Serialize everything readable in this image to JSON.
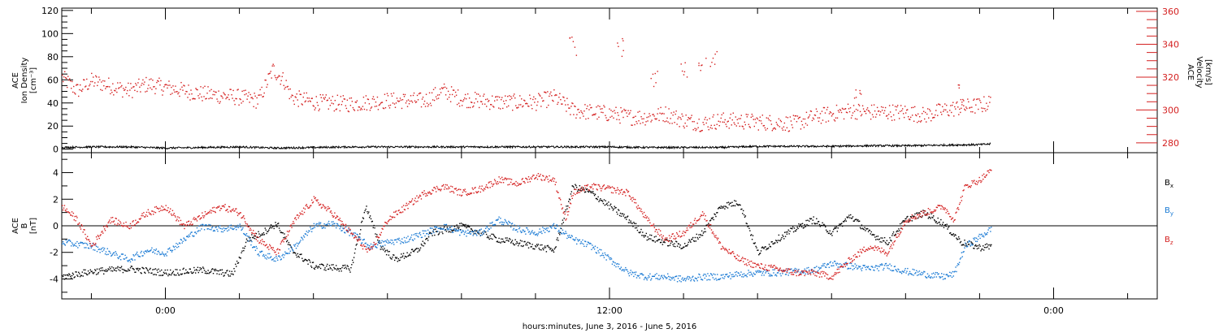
{
  "xlabel": "hours:minutes, June  3, 2016 - June  5, 2016",
  "x_ticks": [
    "0:00",
    "12:00",
    "0:00"
  ],
  "colors": {
    "black": "#000000",
    "red": "#d42020",
    "blue": "#1a7ad4",
    "axis": "#000000",
    "ref_line": "#000000"
  },
  "chart_data": [
    {
      "type": "scatter",
      "panel": "top",
      "x_unit": "hours since 2016-06-03 00:00",
      "x_range": [
        -2.8,
        26.8
      ],
      "ylabel_left": {
        "lines": [
          "ACE",
          "Ion Density",
          "[cm⁻³]"
        ]
      },
      "ylabel_right": {
        "lines": [
          "ACE",
          "Velocity",
          "[km/s]"
        ]
      },
      "y_left_range": [
        -3,
        122
      ],
      "y_left_ticks": [
        "0",
        "20",
        "40",
        "60",
        "80",
        "100",
        "120"
      ],
      "y_left_tick_values": [
        0,
        20,
        40,
        60,
        80,
        100,
        120
      ],
      "y_right_range": [
        274,
        362
      ],
      "y_right_ticks": [
        "280",
        "300",
        "320",
        "340",
        "360"
      ],
      "y_right_tick_values": [
        280,
        300,
        320,
        340,
        360
      ],
      "series": [
        {
          "axis": "right",
          "color": "red",
          "style": "dots",
          "points": [
            [
              -2.8,
              320
            ],
            [
              -2.4,
              312
            ],
            [
              -2.0,
              318
            ],
            [
              -1.5,
              315
            ],
            [
              -1.0,
              312
            ],
            [
              -0.5,
              316
            ],
            [
              0.0,
              314
            ],
            [
              0.5,
              312
            ],
            [
              1.0,
              310
            ],
            [
              1.5,
              309
            ],
            [
              2.0,
              308
            ],
            [
              2.5,
              306
            ],
            [
              2.9,
              325
            ],
            [
              3.2,
              318
            ],
            [
              3.4,
              308
            ],
            [
              4.0,
              305
            ],
            [
              5.0,
              304
            ],
            [
              6.0,
              306
            ],
            [
              7.0,
              306
            ],
            [
              7.5,
              312
            ],
            [
              8.0,
              307
            ],
            [
              9.0,
              305
            ],
            [
              10.0,
              305
            ],
            [
              10.5,
              308
            ],
            [
              11.0,
              300
            ],
            [
              11.5,
              299
            ],
            [
              12.0,
              298
            ],
            [
              12.3,
              297
            ],
            [
              12.5,
              296
            ],
            [
              13.0,
              296
            ],
            [
              13.5,
              298
            ],
            [
              14.0,
              294
            ],
            [
              14.5,
              292
            ],
            [
              15.0,
              294
            ],
            [
              16.0,
              293
            ],
            [
              17.0,
              292
            ],
            [
              17.5,
              296
            ],
            [
              18.0,
              298
            ],
            [
              18.5,
              300
            ],
            [
              19.0,
              299
            ],
            [
              20.0,
              299
            ],
            [
              20.5,
              297
            ],
            [
              21.0,
              300
            ],
            [
              21.5,
              302
            ],
            [
              22.0,
              303
            ],
            [
              22.3,
              305
            ]
          ],
          "spikes": [
            [
              11.0,
              345
            ],
            [
              12.3,
              344
            ],
            [
              13.2,
              326
            ],
            [
              14.0,
              330
            ],
            [
              14.5,
              335
            ],
            [
              14.8,
              338
            ],
            [
              18.7,
              318
            ],
            [
              21.5,
              316
            ]
          ]
        },
        {
          "axis": "left",
          "color": "black",
          "style": "line",
          "points": [
            [
              -2.8,
              1.5
            ],
            [
              -2.0,
              2.0
            ],
            [
              -1.0,
              2.0
            ],
            [
              0.0,
              1.0
            ],
            [
              1.0,
              1.5
            ],
            [
              2.0,
              2.0
            ],
            [
              3.0,
              1.0
            ],
            [
              4.0,
              1.5
            ],
            [
              5.0,
              2.0
            ],
            [
              6.0,
              2.0
            ],
            [
              7.0,
              2.0
            ],
            [
              8.0,
              2.0
            ],
            [
              9.0,
              2.0
            ],
            [
              10.0,
              2.0
            ],
            [
              11.0,
              2.0
            ],
            [
              12.0,
              2.0
            ],
            [
              13.0,
              1.5
            ],
            [
              14.0,
              1.5
            ],
            [
              15.0,
              1.5
            ],
            [
              16.0,
              2.5
            ],
            [
              17.0,
              2.5
            ],
            [
              18.0,
              2.5
            ],
            [
              19.0,
              3.0
            ],
            [
              20.0,
              3.0
            ],
            [
              21.0,
              3.5
            ],
            [
              22.0,
              4.0
            ],
            [
              22.3,
              4.5
            ]
          ]
        }
      ]
    },
    {
      "type": "scatter",
      "panel": "bottom",
      "x_unit": "hours since 2016-06-03 00:00",
      "x_range": [
        -2.8,
        26.8
      ],
      "ylabel_left": {
        "lines": [
          "ACE",
          "B",
          "[nT]"
        ]
      },
      "y_range": [
        -5.5,
        5.5
      ],
      "y_ticks": [
        "-4",
        "-2",
        "0",
        "2",
        "4"
      ],
      "y_tick_values": [
        -4,
        -2,
        0,
        2,
        4
      ],
      "zero_line": true,
      "legend": [
        {
          "label": "B",
          "subscript": "x",
          "color": "black"
        },
        {
          "label": "B",
          "subscript": "y",
          "color": "blue"
        },
        {
          "label": "B",
          "subscript": "z",
          "color": "red"
        }
      ],
      "series": [
        {
          "name": "Bx",
          "color": "black",
          "points": [
            [
              -2.8,
              -3.8
            ],
            [
              -2.0,
              -3.4
            ],
            [
              -1.0,
              -3.2
            ],
            [
              0.0,
              -3.5
            ],
            [
              1.0,
              -3.3
            ],
            [
              1.8,
              -3.6
            ],
            [
              2.2,
              -1.0
            ],
            [
              2.6,
              -0.5
            ],
            [
              3.0,
              0.2
            ],
            [
              3.4,
              -1.8
            ],
            [
              4.0,
              -3.0
            ],
            [
              5.0,
              -3.2
            ],
            [
              5.4,
              1.5
            ],
            [
              5.8,
              -1.5
            ],
            [
              6.2,
              -2.5
            ],
            [
              6.8,
              -1.8
            ],
            [
              7.2,
              -0.5
            ],
            [
              8.0,
              0.0
            ],
            [
              8.5,
              -0.5
            ],
            [
              9.0,
              -1.0
            ],
            [
              10.0,
              -1.5
            ],
            [
              10.5,
              -1.8
            ],
            [
              11.0,
              3.0
            ],
            [
              11.5,
              2.5
            ],
            [
              12.0,
              1.5
            ],
            [
              12.5,
              0.5
            ],
            [
              13.0,
              -0.8
            ],
            [
              13.5,
              -1.2
            ],
            [
              14.0,
              -1.5
            ],
            [
              14.5,
              -0.5
            ],
            [
              15.0,
              1.5
            ],
            [
              15.5,
              1.8
            ],
            [
              16.0,
              -2.0
            ],
            [
              16.5,
              -1.0
            ],
            [
              17.0,
              -0.2
            ],
            [
              17.5,
              0.5
            ],
            [
              18.0,
              -0.5
            ],
            [
              18.5,
              0.8
            ],
            [
              19.0,
              -0.5
            ],
            [
              19.5,
              -1.2
            ],
            [
              20.0,
              0.5
            ],
            [
              20.5,
              1.0
            ],
            [
              21.0,
              0.2
            ],
            [
              21.5,
              -1.2
            ],
            [
              22.0,
              -1.6
            ],
            [
              22.3,
              -1.5
            ]
          ]
        },
        {
          "name": "By",
          "color": "blue",
          "points": [
            [
              -2.8,
              -1.2
            ],
            [
              -2.0,
              -1.5
            ],
            [
              -1.5,
              -2.0
            ],
            [
              -1.0,
              -2.5
            ],
            [
              -0.5,
              -1.8
            ],
            [
              0.0,
              -2.0
            ],
            [
              0.5,
              -1.0
            ],
            [
              1.0,
              0.0
            ],
            [
              1.5,
              -0.2
            ],
            [
              2.0,
              0.0
            ],
            [
              2.5,
              -2.0
            ],
            [
              3.0,
              -2.5
            ],
            [
              3.5,
              -1.5
            ],
            [
              4.0,
              0.0
            ],
            [
              4.5,
              0.2
            ],
            [
              5.0,
              -0.5
            ],
            [
              5.5,
              -1.5
            ],
            [
              6.0,
              -1.2
            ],
            [
              6.5,
              -1.0
            ],
            [
              7.0,
              -0.5
            ],
            [
              7.5,
              0.0
            ],
            [
              8.0,
              -0.5
            ],
            [
              8.5,
              -0.5
            ],
            [
              9.0,
              0.5
            ],
            [
              9.5,
              -0.2
            ],
            [
              10.0,
              -0.5
            ],
            [
              10.5,
              0.0
            ],
            [
              11.0,
              -1.0
            ],
            [
              11.5,
              -1.5
            ],
            [
              12.0,
              -2.5
            ],
            [
              12.5,
              -3.5
            ],
            [
              13.0,
              -3.8
            ],
            [
              13.5,
              -3.8
            ],
            [
              14.0,
              -4.0
            ],
            [
              14.5,
              -3.8
            ],
            [
              15.0,
              -3.8
            ],
            [
              15.5,
              -3.6
            ],
            [
              16.0,
              -3.5
            ],
            [
              16.5,
              -3.5
            ],
            [
              17.0,
              -3.4
            ],
            [
              17.5,
              -3.3
            ],
            [
              18.0,
              -2.8
            ],
            [
              18.5,
              -3.0
            ],
            [
              19.0,
              -3.2
            ],
            [
              19.5,
              -3.0
            ],
            [
              20.0,
              -3.4
            ],
            [
              20.5,
              -3.6
            ],
            [
              21.0,
              -3.8
            ],
            [
              21.3,
              -3.6
            ],
            [
              21.6,
              -1.5
            ],
            [
              22.0,
              -0.8
            ],
            [
              22.3,
              -0.2
            ]
          ]
        },
        {
          "name": "Bz",
          "color": "red",
          "points": [
            [
              -2.8,
              1.5
            ],
            [
              -2.4,
              0.5
            ],
            [
              -2.0,
              -1.5
            ],
            [
              -1.5,
              0.5
            ],
            [
              -1.0,
              0.0
            ],
            [
              -0.5,
              1.0
            ],
            [
              0.0,
              1.5
            ],
            [
              0.5,
              0.0
            ],
            [
              1.0,
              0.8
            ],
            [
              1.5,
              1.5
            ],
            [
              2.0,
              1.0
            ],
            [
              2.5,
              -1.0
            ],
            [
              3.0,
              -2.0
            ],
            [
              3.5,
              0.5
            ],
            [
              4.0,
              2.0
            ],
            [
              4.5,
              1.0
            ],
            [
              5.0,
              -0.5
            ],
            [
              5.5,
              -2.0
            ],
            [
              6.0,
              0.5
            ],
            [
              6.5,
              1.5
            ],
            [
              7.0,
              2.5
            ],
            [
              7.5,
              3.0
            ],
            [
              8.0,
              2.5
            ],
            [
              8.5,
              2.8
            ],
            [
              9.0,
              3.5
            ],
            [
              9.5,
              3.2
            ],
            [
              10.0,
              3.8
            ],
            [
              10.5,
              3.5
            ],
            [
              10.8,
              0.5
            ],
            [
              11.0,
              2.5
            ],
            [
              11.5,
              3.0
            ],
            [
              12.0,
              2.8
            ],
            [
              12.5,
              2.5
            ],
            [
              13.0,
              0.5
            ],
            [
              13.5,
              -1.0
            ],
            [
              14.0,
              -0.5
            ],
            [
              14.5,
              1.0
            ],
            [
              15.0,
              -1.5
            ],
            [
              15.5,
              -2.5
            ],
            [
              16.0,
              -3.0
            ],
            [
              16.5,
              -3.2
            ],
            [
              17.0,
              -3.5
            ],
            [
              17.5,
              -3.5
            ],
            [
              18.0,
              -3.8
            ],
            [
              18.5,
              -2.5
            ],
            [
              19.0,
              -1.5
            ],
            [
              19.5,
              -2.0
            ],
            [
              20.0,
              0.5
            ],
            [
              20.5,
              1.0
            ],
            [
              21.0,
              1.5
            ],
            [
              21.3,
              0.5
            ],
            [
              21.6,
              3.0
            ],
            [
              22.0,
              3.5
            ],
            [
              22.3,
              4.2
            ]
          ]
        }
      ]
    }
  ]
}
